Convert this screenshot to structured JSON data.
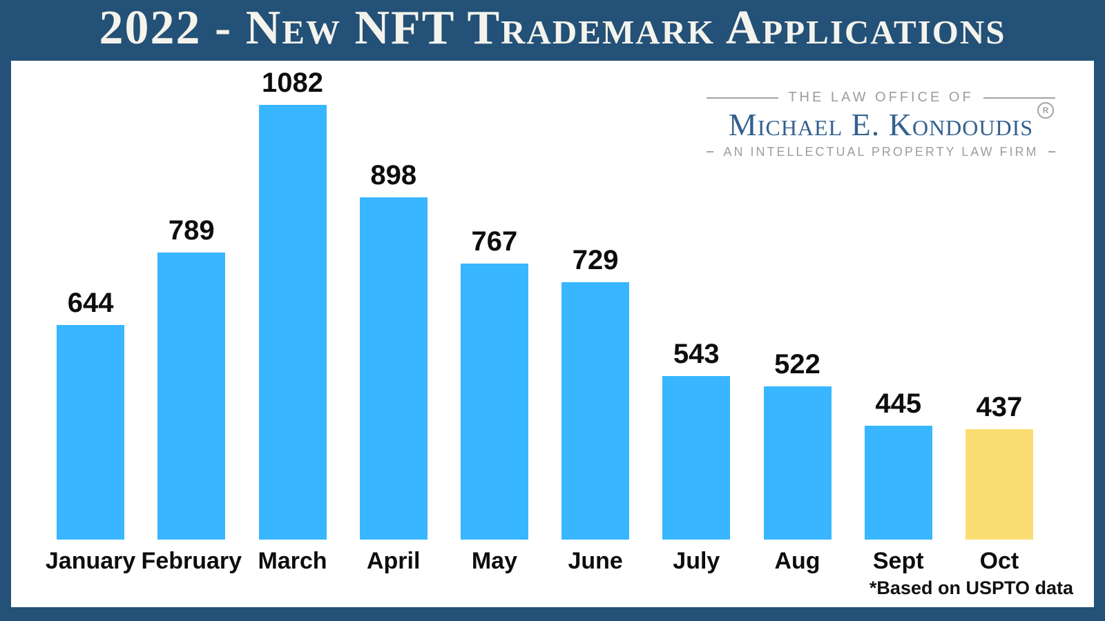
{
  "title": "2022 - New NFT Trademark Applications",
  "logo": {
    "top_line": "THE LAW OFFICE OF",
    "name": "Michael E. Kondoudis",
    "registered_symbol": "R",
    "tagline": "AN INTELLECTUAL PROPERTY LAW FIRM"
  },
  "footnote": "*Based on USPTO data",
  "colors": {
    "background_blue": "#235177",
    "title_text": "#f4f3ec",
    "bar_blue": "#38b6ff",
    "bar_yellow": "#fadd73",
    "logo_blue": "#33618f",
    "logo_gray": "#9d9d9d",
    "label_black": "#0d0d0d"
  },
  "chart_data": {
    "type": "bar",
    "title": "2022 - New NFT Trademark Applications",
    "categories": [
      "January",
      "February",
      "March",
      "April",
      "May",
      "June",
      "July",
      "Aug",
      "Sept",
      "Oct"
    ],
    "values": [
      644,
      789,
      1082,
      898,
      767,
      729,
      543,
      522,
      445,
      437
    ],
    "xlabel": "",
    "ylabel": "",
    "ylim": [
      218,
      1082
    ],
    "grid": false,
    "legend": "none",
    "value_labels": true,
    "bar_color": "#38b6ff",
    "highlight_color": "#fadd73",
    "highlight_index": 9,
    "annotation": "*Based on USPTO data"
  }
}
